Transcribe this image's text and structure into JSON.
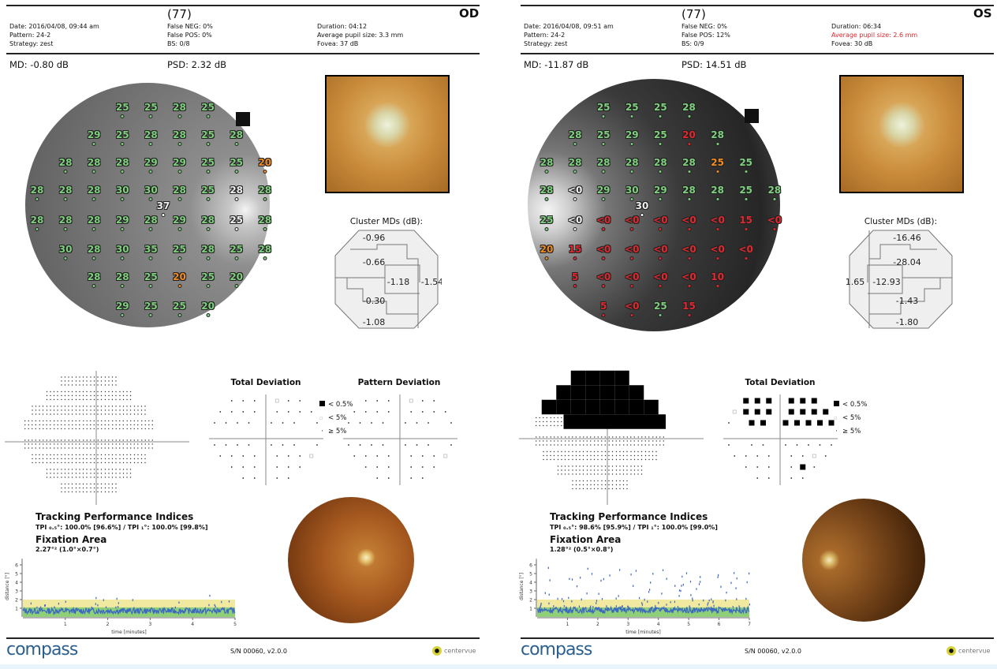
{
  "colors": {
    "normal": "#7ed07e",
    "borderline": "#f08a24",
    "abnormal": "#e0282e",
    "blindspot": "#eeeeee",
    "band_yellow": "#f2e9a0",
    "band_green": "#8fcf78",
    "trace": "#3a66c4",
    "logo": "#2a5f8f",
    "warning": "#e0282e"
  },
  "panels": [
    {
      "eye": "OD",
      "reliability_index": "(77)",
      "date": "Date: 2016/04/08, 09:44 am",
      "pattern": "Pattern: 24-2",
      "strategy": "Strategy: zest",
      "false_neg": "False NEG: 0%",
      "false_pos": "False POS: 0%",
      "bs": "BS: 0/8",
      "duration": "Duration: 04:12",
      "pupil": "Average pupil size: 3.3 mm",
      "pupil_warning": false,
      "fovea": "Fovea: 37 dB",
      "md": "MD: -0.80 dB",
      "psd": "PSD: 2.32 dB",
      "sensitivity_rows": [
        [
          null,
          null,
          null,
          [
            "25",
            "n"
          ],
          [
            "25",
            "n"
          ],
          [
            "28",
            "n"
          ],
          [
            "25",
            "n"
          ],
          null,
          null
        ],
        [
          null,
          null,
          [
            "29",
            "n"
          ],
          [
            "25",
            "n"
          ],
          [
            "28",
            "n"
          ],
          [
            "28",
            "n"
          ],
          [
            "25",
            "n"
          ],
          [
            "28",
            "n"
          ],
          null
        ],
        [
          null,
          [
            "28",
            "n"
          ],
          [
            "28",
            "n"
          ],
          [
            "28",
            "n"
          ],
          [
            "29",
            "n"
          ],
          [
            "29",
            "n"
          ],
          [
            "25",
            "n"
          ],
          [
            "25",
            "n"
          ],
          [
            "20",
            "o"
          ]
        ],
        [
          [
            "28",
            "n"
          ],
          [
            "28",
            "n"
          ],
          [
            "28",
            "n"
          ],
          [
            "30",
            "n"
          ],
          [
            "30",
            "n"
          ],
          [
            "28",
            "n"
          ],
          [
            "25",
            "n"
          ],
          [
            "28",
            "w"
          ],
          [
            "28",
            "n"
          ]
        ],
        [
          [
            "28",
            "n"
          ],
          [
            "28",
            "n"
          ],
          [
            "28",
            "n"
          ],
          [
            "29",
            "n"
          ],
          [
            "28",
            "n"
          ],
          [
            "29",
            "n"
          ],
          [
            "28",
            "n"
          ],
          [
            "25",
            "w"
          ],
          [
            "28",
            "n"
          ]
        ],
        [
          null,
          [
            "30",
            "n"
          ],
          [
            "28",
            "n"
          ],
          [
            "30",
            "n"
          ],
          [
            "35",
            "n"
          ],
          [
            "25",
            "n"
          ],
          [
            "28",
            "n"
          ],
          [
            "25",
            "n"
          ],
          [
            "28",
            "n"
          ]
        ],
        [
          null,
          null,
          [
            "28",
            "n"
          ],
          [
            "28",
            "n"
          ],
          [
            "25",
            "n"
          ],
          [
            "20",
            "o"
          ],
          [
            "25",
            "n"
          ],
          [
            "20",
            "n"
          ],
          null
        ],
        [
          null,
          null,
          null,
          [
            "29",
            "n"
          ],
          [
            "25",
            "n"
          ],
          [
            "25",
            "n"
          ],
          [
            "20",
            "n"
          ],
          null,
          null
        ]
      ],
      "fovea_value": "37",
      "cluster_title": "Cluster MDs (dB):",
      "clusters": {
        "superior_outer": "-0.96",
        "superior_inner": "-0.66",
        "central": "-1.18",
        "nasal": "-1.54",
        "inferior_inner": "-0.30",
        "inferior_outer": "-1.08"
      },
      "total_deviation_title": "Total Deviation",
      "pattern_deviation_title": "Pattern Deviation",
      "total_deviation": [
        "dddd",
        "dddfdd",
        "dddddddd",
        "ddddddd_d",
        "ddddddd_d",
        "dddddddf",
        "dddddd",
        "dddd"
      ],
      "pattern_deviation": [
        "dddd",
        "dddfdd",
        "dddddddd",
        "ddddddd_d",
        "ddddddd_d",
        "dddddddf",
        "dddddd",
        "dddd"
      ],
      "legend": [
        "< 0.5%",
        "< 5%",
        "≥ 5%"
      ],
      "tpi_title": "Tracking Performance Indices",
      "tpi": "TPI ₀.₅°: 100.0% [96.6%]  /  TPI ₁°: 100.0% [99.8%]",
      "fixation_title": "Fixation Area",
      "fixation_area": "2.27°² (1.0°×0.7°)",
      "fixation_chart": {
        "type": "scatter",
        "xlabel": "time [minutes]",
        "ylabel": "distance [°]",
        "xlim": [
          0,
          5
        ],
        "ylim": [
          0,
          7
        ],
        "xticks": [
          "1",
          "2",
          "3",
          "4",
          "5"
        ],
        "yticks": [
          "1",
          "2",
          "3",
          "4",
          "5",
          "6"
        ],
        "bands": {
          "yellow_max": 2,
          "green_max": 1.1
        },
        "typical_distance": 0.7
      },
      "sn": "S/N 00060, v2.0.0",
      "logo": "compass",
      "brand": "centervue"
    },
    {
      "eye": "OS",
      "reliability_index": "(77)",
      "date": "Date: 2016/04/08, 09:51 am",
      "pattern": "Pattern: 24-2",
      "strategy": "Strategy: zest",
      "false_neg": "False NEG: 0%",
      "false_pos": "False POS: 12%",
      "bs": "BS: 0/9",
      "duration": "Duration: 06:34",
      "pupil": "Average pupil size: 2.6 mm",
      "pupil_warning": true,
      "fovea": "Fovea: 30 dB",
      "md": "MD: -11.87 dB",
      "psd": "PSD: 14.51 dB",
      "sensitivity_rows": [
        [
          null,
          null,
          [
            "25",
            "n"
          ],
          [
            "25",
            "n"
          ],
          [
            "25",
            "n"
          ],
          [
            "28",
            "n"
          ],
          null,
          null,
          null
        ],
        [
          null,
          [
            "28",
            "n"
          ],
          [
            "25",
            "n"
          ],
          [
            "29",
            "n"
          ],
          [
            "25",
            "n"
          ],
          [
            "20",
            "r"
          ],
          [
            "28",
            "n"
          ],
          null,
          null
        ],
        [
          [
            "28",
            "n"
          ],
          [
            "28",
            "n"
          ],
          [
            "28",
            "n"
          ],
          [
            "28",
            "n"
          ],
          [
            "28",
            "n"
          ],
          [
            "28",
            "n"
          ],
          [
            "25",
            "o"
          ],
          [
            "25",
            "n"
          ],
          null
        ],
        [
          [
            "28",
            "n"
          ],
          [
            "<0",
            "w"
          ],
          [
            "29",
            "n"
          ],
          [
            "30",
            "n"
          ],
          [
            "29",
            "n"
          ],
          [
            "28",
            "n"
          ],
          [
            "28",
            "n"
          ],
          [
            "25",
            "n"
          ],
          [
            "28",
            "n"
          ]
        ],
        [
          [
            "25",
            "n"
          ],
          [
            "<0",
            "w"
          ],
          [
            "<0",
            "r"
          ],
          [
            "<0",
            "r"
          ],
          [
            "<0",
            "r"
          ],
          [
            "<0",
            "r"
          ],
          [
            "<0",
            "r"
          ],
          [
            "15",
            "r"
          ],
          [
            "<0",
            "r"
          ]
        ],
        [
          [
            "20",
            "o"
          ],
          [
            "15",
            "r"
          ],
          [
            "<0",
            "r"
          ],
          [
            "<0",
            "r"
          ],
          [
            "<0",
            "r"
          ],
          [
            "<0",
            "r"
          ],
          [
            "<0",
            "r"
          ],
          [
            "<0",
            "r"
          ],
          null
        ],
        [
          null,
          [
            "5",
            "r"
          ],
          [
            "<0",
            "r"
          ],
          [
            "<0",
            "r"
          ],
          [
            "<0",
            "r"
          ],
          [
            "<0",
            "r"
          ],
          [
            "10",
            "r"
          ],
          null,
          null
        ],
        [
          null,
          null,
          [
            "5",
            "r"
          ],
          [
            "<0",
            "r"
          ],
          [
            "25",
            "n"
          ],
          [
            "15",
            "r"
          ],
          null,
          null,
          null
        ]
      ],
      "fovea_value": "30",
      "cluster_title": "Cluster MDs (dB):",
      "clusters": {
        "superior_outer": "-16.46",
        "superior_inner": "-28.04",
        "central": "-12.93",
        "nasal": "-1.65",
        "inferior_inner": "-1.43",
        "inferior_outer": "-1.80"
      },
      "total_deviation_title": "Total Deviation",
      "total_deviation": [
        "BBdB",
        "BBBBBB",
        "fBBBBBBB",
        "d_BBBBBBB",
        "d_ddddddd",
        "ddddddfd",
        "ddddBd",
        "dddd"
      ],
      "legend": [
        "< 0.5%",
        "< 5%",
        "≥ 5%"
      ],
      "tpi_title": "Tracking Performance Indices",
      "tpi": "TPI ₀.₅°: 98.6% [95.9%]  /  TPI ₁°: 100.0% [99.0%]",
      "fixation_title": "Fixation Area",
      "fixation_area": "1.28°² (0.5°×0.8°)",
      "fixation_chart": {
        "type": "scatter",
        "xlabel": "time [minutes]",
        "ylabel": "distance [°]",
        "xlim": [
          0,
          7
        ],
        "ylim": [
          0,
          7
        ],
        "xticks": [
          "1",
          "2",
          "3",
          "4",
          "5",
          "6",
          "7"
        ],
        "yticks": [
          "1",
          "2",
          "3",
          "4",
          "5",
          "6"
        ],
        "bands": {
          "yellow_max": 2,
          "green_max": 1.1
        },
        "typical_distance": 0.8
      },
      "sn": "S/N 00060, v2.0.0",
      "logo": "compass",
      "brand": "centervue"
    }
  ]
}
